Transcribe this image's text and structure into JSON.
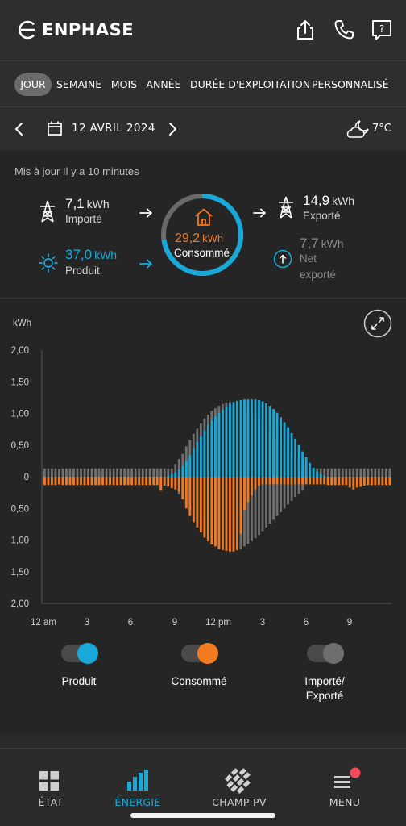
{
  "header": {
    "brand": "ENPHASE",
    "icons": [
      "share-icon",
      "phone-icon",
      "help-icon"
    ]
  },
  "tabs": [
    {
      "label": "JOUR",
      "active": true
    },
    {
      "label": "SEMAINE",
      "active": false
    },
    {
      "label": "MOIS",
      "active": false
    },
    {
      "label": "ANNÉE",
      "active": false
    },
    {
      "label": "DURÉE D'EXPLOITATION",
      "active": false
    },
    {
      "label": "PERSONNALISÉ",
      "active": false
    }
  ],
  "datebar": {
    "date": "12 AVRIL 2024",
    "temperature": "7°C",
    "weather_icon": "partly-cloudy-night-icon"
  },
  "summary": {
    "updated": "Mis à jour Il y a 10 minutes",
    "imported": {
      "value": "7,1",
      "unit": "kWh",
      "label": "Importé"
    },
    "produced": {
      "value": "37,0",
      "unit": "kWh",
      "label": "Produit"
    },
    "consumed": {
      "value": "29,2",
      "unit": "kWh",
      "label": "Consommé"
    },
    "exported": {
      "value": "14,9",
      "unit": "kWh",
      "label": "Exporté"
    },
    "net_exported": {
      "value": "7,7",
      "unit": "kWh",
      "label_line1": "Net",
      "label_line2": "exporté"
    }
  },
  "chart_data": {
    "type": "bar",
    "y_unit": "kWh",
    "y_ticks": [
      "2,00",
      "1,50",
      "1,00",
      "0,50",
      "0",
      "0,50",
      "1,00",
      "1,50",
      "2,00"
    ],
    "ylim": [
      -2,
      2
    ],
    "x_ticks": [
      "12 am",
      "3",
      "6",
      "9",
      "12 pm",
      "3",
      "6",
      "9"
    ],
    "colors": {
      "produced": "#18a9d8",
      "consumed": "#f47a20",
      "grid": "#8a8a8a"
    },
    "series": [
      {
        "name": "Produit",
        "values": [
          0,
          0,
          0,
          0,
          0,
          0,
          0,
          0,
          0,
          0,
          0,
          0,
          0,
          0,
          0,
          0,
          0,
          0,
          0,
          0,
          0,
          0,
          0,
          0,
          0,
          0,
          0,
          0,
          0,
          0,
          0,
          0,
          0,
          0,
          0.02,
          0.04,
          0.07,
          0.11,
          0.17,
          0.25,
          0.34,
          0.45,
          0.55,
          0.64,
          0.73,
          0.82,
          0.89,
          0.95,
          1.01,
          1.06,
          1.11,
          1.15,
          1.18,
          1.2,
          1.21,
          1.22,
          1.22,
          1.22,
          1.22,
          1.21,
          1.19,
          1.16,
          1.12,
          1.07,
          1.01,
          0.94,
          0.86,
          0.78,
          0.69,
          0.6,
          0.5,
          0.4,
          0.31,
          0.22,
          0.14,
          0.08,
          0.04,
          0.02,
          0,
          0,
          0,
          0,
          0,
          0,
          0,
          0,
          0,
          0,
          0,
          0,
          0,
          0,
          0,
          0,
          0,
          0
        ]
      },
      {
        "name": "Consommé",
        "values": [
          0.13,
          0.13,
          0.13,
          0.13,
          0.12,
          0.13,
          0.13,
          0.13,
          0.13,
          0.13,
          0.13,
          0.13,
          0.13,
          0.13,
          0.13,
          0.13,
          0.13,
          0.13,
          0.13,
          0.13,
          0.13,
          0.13,
          0.13,
          0.13,
          0.13,
          0.13,
          0.13,
          0.13,
          0.13,
          0.13,
          0.13,
          0.13,
          0.22,
          0.14,
          0.15,
          0.18,
          0.2,
          0.24,
          0.35,
          0.5,
          0.62,
          0.72,
          0.8,
          0.88,
          0.96,
          1.02,
          1.07,
          1.1,
          1.14,
          1.16,
          1.17,
          1.18,
          1.18,
          1.16,
          0.9,
          0.52,
          0.4,
          0.3,
          0.2,
          0.14,
          0.12,
          0.12,
          0.12,
          0.12,
          0.12,
          0.12,
          0.12,
          0.12,
          0.12,
          0.12,
          0.12,
          0.12,
          0.12,
          0.12,
          0.12,
          0.12,
          0.12,
          0.12,
          0.13,
          0.13,
          0.13,
          0.13,
          0.13,
          0.13,
          0.17,
          0.2,
          0.17,
          0.16,
          0.14,
          0.13,
          0.13,
          0.13,
          0.13,
          0.13,
          0.13,
          0.13
        ]
      },
      {
        "name": "Importé/Exporté",
        "import": [
          0.13,
          0.13,
          0.13,
          0.13,
          0.12,
          0.13,
          0.13,
          0.13,
          0.13,
          0.13,
          0.13,
          0.13,
          0.13,
          0.13,
          0.13,
          0.13,
          0.13,
          0.13,
          0.13,
          0.13,
          0.13,
          0.13,
          0.13,
          0.13,
          0.13,
          0.13,
          0.13,
          0.13,
          0.13,
          0.13,
          0.13,
          0.13,
          0.22,
          0.14,
          0.13,
          0.14,
          0.13,
          0.13,
          0.13,
          0.12,
          0.12,
          0.11,
          0.1,
          0.08,
          0.06,
          0.03,
          0.02,
          0,
          0,
          0,
          0,
          0,
          0,
          0,
          0,
          0,
          0,
          0,
          0,
          0,
          0,
          0,
          0,
          0,
          0,
          0,
          0,
          0,
          0,
          0,
          0,
          0,
          0,
          0,
          0.04,
          0.07,
          0.1,
          0.11,
          0.13,
          0.13,
          0.13,
          0.13,
          0.13,
          0.13,
          0.17,
          0.2,
          0.17,
          0.16,
          0.14,
          0.13,
          0.13,
          0.13,
          0.13,
          0.13,
          0.13,
          0.13
        ],
        "export": [
          0.13,
          0.13,
          0.13,
          0.13,
          0.12,
          0.13,
          0.13,
          0.13,
          0.13,
          0.13,
          0.13,
          0.13,
          0.13,
          0.13,
          0.13,
          0.13,
          0.13,
          0.13,
          0.13,
          0.13,
          0.13,
          0.13,
          0.13,
          0.13,
          0.13,
          0.13,
          0.13,
          0.13,
          0.13,
          0.13,
          0.13,
          0.13,
          0.13,
          0.13,
          0.13,
          0.13,
          0.2,
          0.28,
          0.36,
          0.48,
          0.58,
          0.68,
          0.76,
          0.84,
          0.92,
          0.98,
          1.04,
          1.08,
          1.12,
          1.15,
          1.17,
          1.18,
          1.18,
          1.16,
          1.14,
          1.1,
          1.06,
          1.02,
          0.97,
          0.92,
          0.86,
          0.8,
          0.74,
          0.68,
          0.62,
          0.56,
          0.5,
          0.44,
          0.38,
          0.32,
          0.27,
          0.22,
          0.18,
          0.15,
          0.13,
          0.13,
          0.13,
          0.13,
          0.13,
          0.13,
          0.13,
          0.13,
          0.13,
          0.13,
          0.13,
          0.13,
          0.13,
          0.13,
          0.13,
          0.13,
          0.13,
          0.13,
          0.13,
          0.13,
          0.13,
          0.13
        ]
      }
    ]
  },
  "legend": [
    {
      "label": "Produit",
      "color": "#18a9d8",
      "on": true
    },
    {
      "label": "Consommé",
      "color": "#f47a20",
      "on": true
    },
    {
      "label_line1": "Importé/",
      "label_line2": "Exporté",
      "color": "#6e6e6e",
      "on": false
    }
  ],
  "nav": [
    {
      "label": "ÉTAT",
      "icon": "grid-icon",
      "active": false
    },
    {
      "label": "ÉNERGIE",
      "icon": "bar-chart-icon",
      "active": true
    },
    {
      "label": "CHAMP PV",
      "icon": "solar-panels-icon",
      "active": false
    },
    {
      "label": "MENU",
      "icon": "menu-icon",
      "active": false,
      "badge": true
    }
  ]
}
